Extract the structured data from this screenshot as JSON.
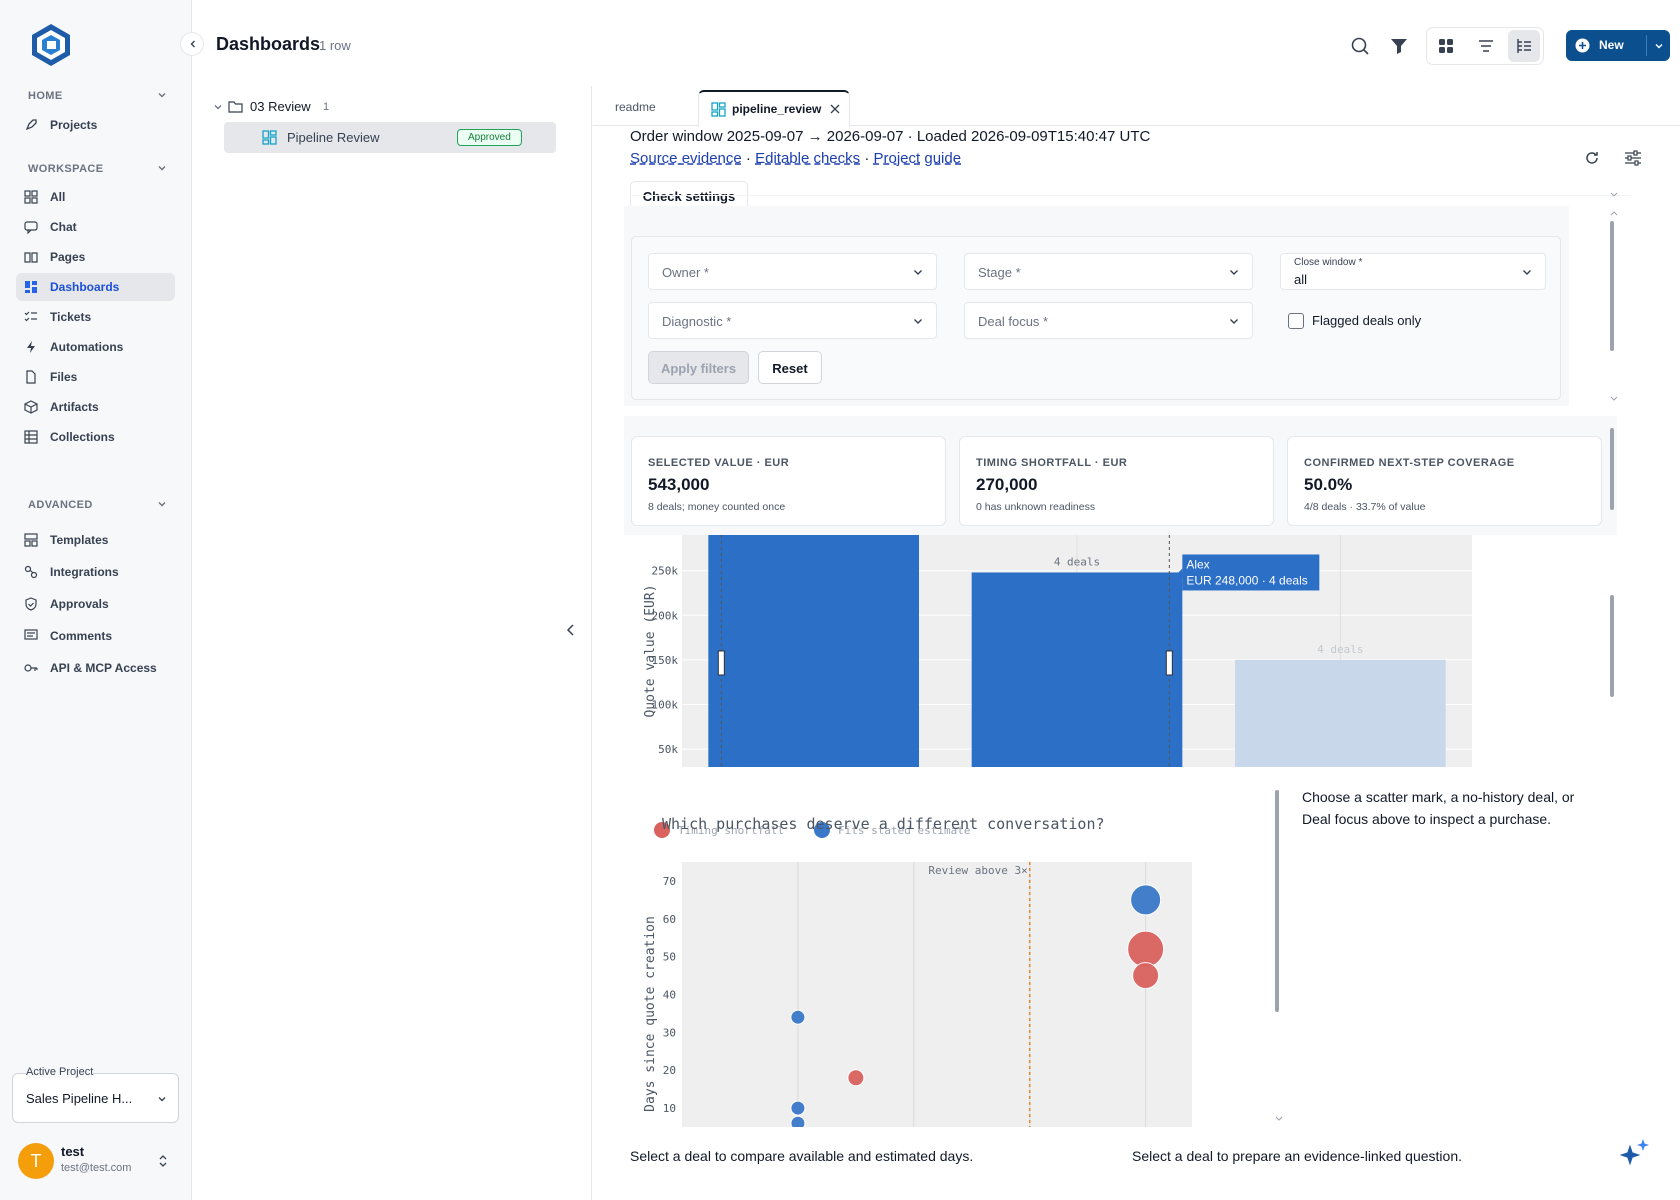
{
  "sidebar": {
    "home_label": "HOME",
    "workspace_label": "WORKSPACE",
    "advanced_label": "ADVANCED",
    "home_items": [
      {
        "label": "Projects",
        "icon": "rocket-icon"
      }
    ],
    "workspace_items": [
      {
        "label": "All",
        "icon": "grid-icon"
      },
      {
        "label": "Chat",
        "icon": "chat-icon"
      },
      {
        "label": "Pages",
        "icon": "book-icon"
      },
      {
        "label": "Dashboards",
        "icon": "dashboard-icon"
      },
      {
        "label": "Tickets",
        "icon": "checklist-icon"
      },
      {
        "label": "Automations",
        "icon": "bolt-icon"
      },
      {
        "label": "Files",
        "icon": "file-icon"
      },
      {
        "label": "Artifacts",
        "icon": "cube-icon"
      },
      {
        "label": "Collections",
        "icon": "table-icon"
      }
    ],
    "advanced_items": [
      {
        "label": "Templates",
        "icon": "template-icon"
      },
      {
        "label": "Integrations",
        "icon": "integrations-icon"
      },
      {
        "label": "Approvals",
        "icon": "shield-icon"
      },
      {
        "label": "Comments",
        "icon": "comment-icon"
      },
      {
        "label": "API & MCP Access",
        "icon": "key-icon"
      }
    ],
    "active_project_label": "Active Project",
    "active_project": "Sales Pipeline H...",
    "user": {
      "initial": "T",
      "name": "test",
      "email": "test@test.com"
    }
  },
  "header": {
    "title": "Dashboards",
    "row_count": "1 row",
    "new_label": "New"
  },
  "tree": {
    "folder": "03 Review",
    "folder_count": "1",
    "item": "Pipeline Review",
    "item_badge": "Approved"
  },
  "tabs": [
    {
      "label": "readme"
    },
    {
      "label": "pipeline_review"
    }
  ],
  "content": {
    "meta_line": "Order window 2025-09-07 → 2026-09-07 · Loaded 2026-09-09T15:40:47 UTC",
    "links": [
      "Source evidence",
      "Editable checks",
      "Project guide"
    ],
    "separator": "·",
    "check_settings": "Check settings",
    "filters": {
      "owner": "Owner *",
      "stage": "Stage *",
      "close_window_label": "Close window *",
      "close_window_value": "all",
      "diagnostic": "Diagnostic *",
      "deal_focus": "Deal focus *",
      "flagged_label": "Flagged deals only",
      "apply": "Apply filters",
      "reset": "Reset"
    },
    "kpis": [
      {
        "title": "SELECTED VALUE · EUR",
        "value": "543,000",
        "sub": "8 deals; money counted once"
      },
      {
        "title": "TIMING SHORTFALL · EUR",
        "value": "270,000",
        "sub": "0 has unknown readiness"
      },
      {
        "title": "CONFIRMED NEXT-STEP COVERAGE",
        "value": "50.0%",
        "sub": "4/8 deals · 33.7% of value"
      }
    ],
    "side_panel": "Choose a scatter mark, a no-history deal, or Deal focus above to inspect a purchase.",
    "bottom_left": "Select a deal to compare available and estimated days.",
    "bottom_right": "Select a deal to prepare an evidence-linked question."
  },
  "chart_data": [
    {
      "type": "bar",
      "ylabel": "Quote value (EUR)",
      "y_ticks": [
        "250k",
        "200k",
        "150k",
        "100k",
        "50k"
      ],
      "ylim": [
        30000,
        290000
      ],
      "bars": [
        {
          "value": 290000,
          "label": "",
          "dim": false
        },
        {
          "value": 248000,
          "label": "4 deals",
          "dim": false
        },
        {
          "value": 150000,
          "label": "4 deals",
          "dim": true
        }
      ],
      "tooltip": {
        "name": "Alex",
        "detail": "EUR 248,000 · 4 deals"
      },
      "colors": {
        "bar": "#2b6fc7",
        "dim": "#c8d7ea"
      }
    },
    {
      "type": "scatter",
      "title": "Which purchases deserve a different conversation?",
      "ylabel": "Days since quote creation",
      "y_ticks": [
        "70",
        "60",
        "50",
        "40",
        "30",
        "20",
        "10"
      ],
      "ylim": [
        5,
        75
      ],
      "legend": [
        {
          "name": "Timing shortfall",
          "color": "#d9625f"
        },
        {
          "name": "Fits stated estimate",
          "color": "#3a78c9"
        }
      ],
      "threshold_label": "Review above 3×",
      "points": [
        {
          "x": 1,
          "y": 34,
          "series": 1,
          "r": 7
        },
        {
          "x": 1,
          "y": 10,
          "series": 1,
          "r": 7
        },
        {
          "x": 1,
          "y": 6,
          "series": 1,
          "r": 7
        },
        {
          "x": 1.5,
          "y": 18,
          "series": 0,
          "r": 8
        },
        {
          "x": 4,
          "y": 65,
          "series": 1,
          "r": 15
        },
        {
          "x": 4,
          "y": 52,
          "series": 0,
          "r": 18
        },
        {
          "x": 4,
          "y": 45,
          "series": 0,
          "r": 13
        }
      ]
    }
  ]
}
